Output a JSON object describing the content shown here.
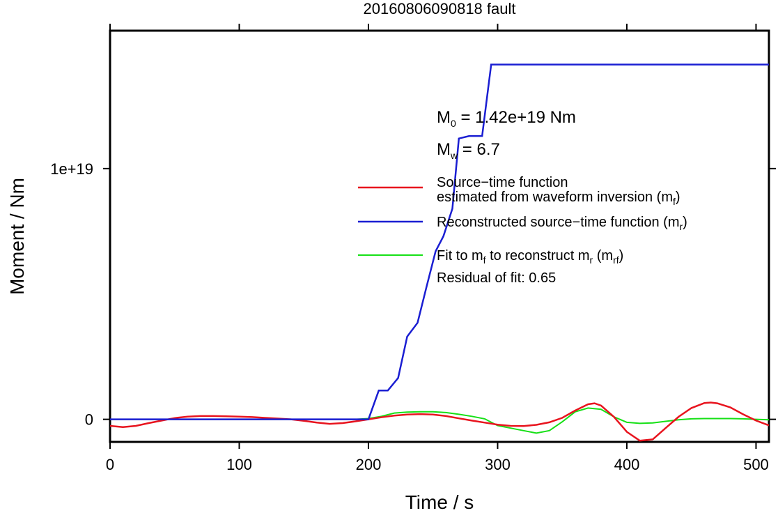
{
  "chart_data": {
    "type": "line",
    "title": "20160806090818 fault",
    "xlabel": "Time / s",
    "ylabel": "Moment / Nm",
    "xlim": [
      0,
      510
    ],
    "ylim": [
      -9e+17,
      1.55e+19
    ],
    "x_ticks": [
      0,
      100,
      200,
      300,
      400,
      500
    ],
    "x_tick_labels": [
      "0",
      "100",
      "200",
      "300",
      "400",
      "500"
    ],
    "y_ticks": [
      0,
      1e+19
    ],
    "y_tick_labels": [
      "0",
      "1e+19"
    ],
    "grid": false,
    "legend_position": "center-right",
    "annotations": {
      "m0": {
        "main": "M",
        "sub": "0",
        "rest": " = 1.42e+19 Nm"
      },
      "mw": {
        "main": "M",
        "sub": "w",
        "rest": " = 6.7"
      }
    },
    "series": [
      {
        "key": "mf",
        "color": "#e8141e",
        "legend_line1": "Source−time function",
        "legend_line2_pre": "estimated from waveform inversion (m",
        "legend_line2_sub": "f",
        "legend_line2_post": ")",
        "x": [
          0,
          10,
          20,
          30,
          40,
          50,
          60,
          70,
          80,
          90,
          100,
          110,
          120,
          130,
          140,
          150,
          160,
          170,
          180,
          190,
          200,
          210,
          220,
          230,
          240,
          250,
          260,
          270,
          280,
          290,
          300,
          310,
          320,
          330,
          340,
          350,
          360,
          370,
          375,
          380,
          390,
          400,
          410,
          420,
          430,
          440,
          450,
          460,
          465,
          470,
          480,
          490,
          500,
          510
        ],
        "y": [
          -2.6e+17,
          -3.1e+17,
          -2.6e+17,
          -1.5e+17,
          -5e+16,
          5e+16,
          1.1e+17,
          1.3e+17,
          1.3e+17,
          1.2e+17,
          1.1e+17,
          9e+16,
          6e+16,
          3e+16,
          0.0,
          -6e+16,
          -1.3e+17,
          -1.8e+17,
          -1.5e+17,
          -8e+16,
          0.0,
          8e+16,
          1.5e+17,
          1.9e+17,
          2.1e+17,
          1.9e+17,
          1.3e+17,
          4e+16,
          -5e+16,
          -1.3e+17,
          -2.1e+17,
          -2.6e+17,
          -2.7e+17,
          -2.2e+17,
          -1.2e+17,
          6e+16,
          3.5e+17,
          6e+17,
          6.4e+17,
          5.5e+17,
          1e+17,
          -5e+17,
          -8.5e+17,
          -8e+17,
          -3.5e+17,
          1e+17,
          4.5e+17,
          6.5e+17,
          6.7e+17,
          6.4e+17,
          4.8e+17,
          2e+17,
          -5e+16,
          -2.4e+17
        ]
      },
      {
        "key": "mr",
        "color": "#1a1ed2",
        "legend_line1_pre": "Reconstructed source−time function (m",
        "legend_line1_sub": "r",
        "legend_line1_post": ")",
        "x": [
          0,
          200,
          208,
          215,
          223,
          230,
          238,
          245,
          252,
          258,
          265,
          270,
          278,
          282,
          288,
          295,
          510
        ],
        "y": [
          0,
          0,
          1.15e+18,
          1.15e+18,
          1.65e+18,
          3.3e+18,
          3.85e+18,
          5.3e+18,
          6.7e+18,
          7.3e+18,
          8.4e+18,
          1.12e+19,
          1.13e+19,
          1.13e+19,
          1.13e+19,
          1.415e+19,
          1.415e+19
        ]
      },
      {
        "key": "mrf",
        "color": "#16e016",
        "legend_line1_pre": "Fit to m",
        "legend_line1_sub1": "f",
        "legend_line1_mid": " to reconstruct m",
        "legend_line1_sub2": "r",
        "legend_line1_mid2": " (m",
        "legend_line1_sub3": "rf",
        "legend_line1_post": ")",
        "residual": "Residual of fit: 0.65",
        "x": [
          0,
          50,
          100,
          150,
          190,
          200,
          210,
          220,
          230,
          240,
          250,
          260,
          270,
          280,
          290,
          300,
          310,
          320,
          330,
          340,
          350,
          360,
          370,
          380,
          390,
          400,
          410,
          420,
          430,
          440,
          450,
          460,
          470,
          480,
          490,
          500,
          510
        ],
        "y": [
          0,
          0,
          0,
          0,
          0,
          3e+16,
          1.2e+17,
          2.5e+17,
          2.9e+17,
          3e+17,
          3e+17,
          2.7e+17,
          2e+17,
          1.2e+17,
          2e+16,
          -2.5e+17,
          -3.5e+17,
          -4.5e+17,
          -5.5e+17,
          -4.5e+17,
          -1e+17,
          3e+17,
          4.5e+17,
          4e+17,
          1e+17,
          -1.2e+17,
          -1.6e+17,
          -1.4e+17,
          -8e+16,
          -2e+16,
          2e+16,
          3e+16,
          3e+16,
          3e+16,
          2e+16,
          0.0,
          -2e+16
        ]
      }
    ]
  }
}
